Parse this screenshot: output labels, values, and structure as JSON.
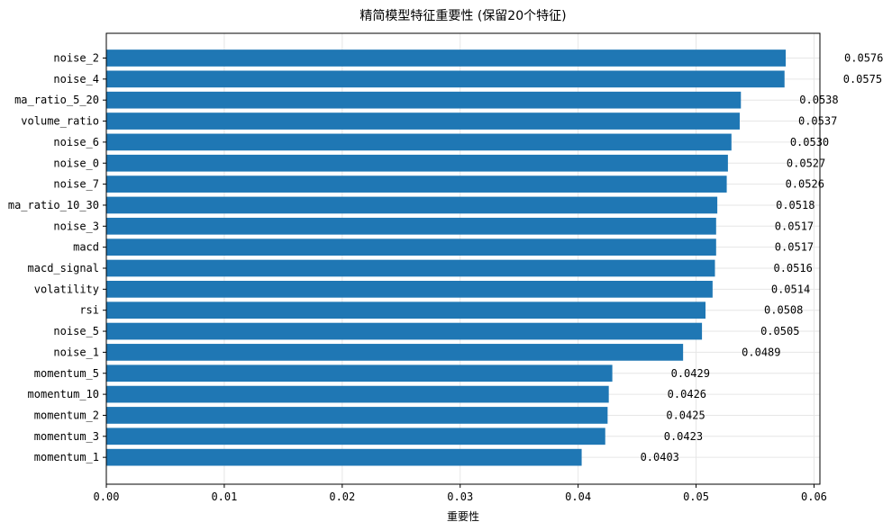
{
  "chart_data": {
    "type": "bar",
    "orientation": "horizontal",
    "title": "精简模型特征重要性 (保留20个特征)",
    "xlabel": "重要性",
    "ylabel": "",
    "xlim": [
      0,
      0.0605
    ],
    "xticks": [
      "0.00",
      "0.01",
      "0.02",
      "0.03",
      "0.04",
      "0.05",
      "0.06"
    ],
    "grid": true,
    "bar_color": "#1f77b4",
    "categories": [
      "noise_2",
      "noise_4",
      "ma_ratio_5_20",
      "volume_ratio",
      "noise_6",
      "noise_0",
      "noise_7",
      "ma_ratio_10_30",
      "noise_3",
      "macd",
      "macd_signal",
      "volatility",
      "rsi",
      "noise_5",
      "noise_1",
      "momentum_5",
      "momentum_10",
      "momentum_2",
      "momentum_3",
      "momentum_1"
    ],
    "values": [
      0.0576,
      0.0575,
      0.0538,
      0.0537,
      0.053,
      0.0527,
      0.0526,
      0.0518,
      0.0517,
      0.0517,
      0.0516,
      0.0514,
      0.0508,
      0.0505,
      0.0489,
      0.0429,
      0.0426,
      0.0425,
      0.0423,
      0.0403
    ],
    "value_labels": [
      "0.0576",
      "0.0575",
      "0.0538",
      "0.0537",
      "0.0530",
      "0.0527",
      "0.0526",
      "0.0518",
      "0.0517",
      "0.0517",
      "0.0516",
      "0.0514",
      "0.0508",
      "0.0505",
      "0.0489",
      "0.0429",
      "0.0426",
      "0.0425",
      "0.0423",
      "0.0403"
    ]
  }
}
